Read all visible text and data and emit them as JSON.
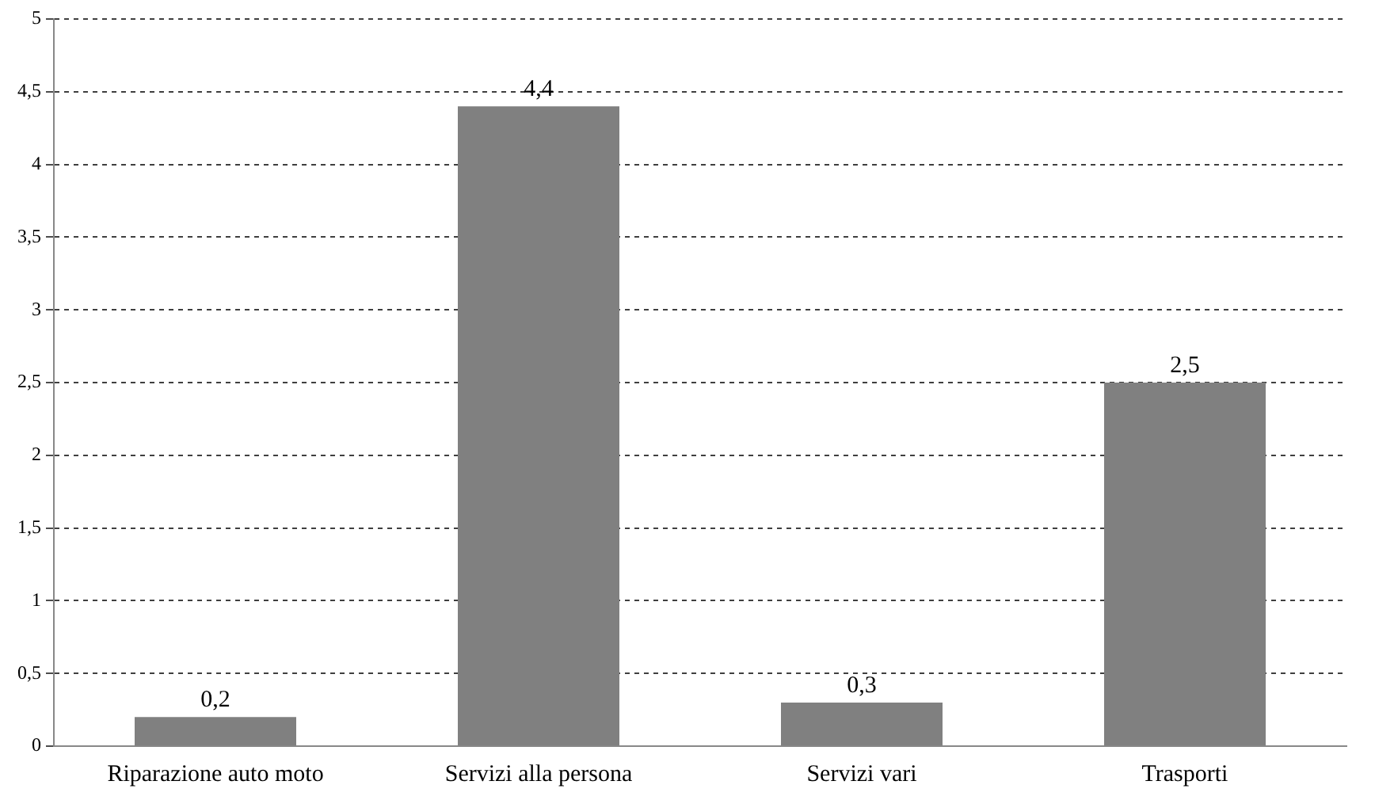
{
  "chart_data": {
    "type": "bar",
    "categories": [
      "Riparazione auto moto",
      "Servizi alla persona",
      "Servizi vari",
      "Trasporti"
    ],
    "values": [
      0.2,
      4.4,
      0.3,
      2.5
    ],
    "value_labels": [
      "0,2",
      "4,4",
      "0,3",
      "2,5"
    ],
    "color": "#808080",
    "ylim": [
      0,
      5
    ],
    "yticks": [
      {
        "value": 0,
        "label": "0"
      },
      {
        "value": 0.5,
        "label": "0,5"
      },
      {
        "value": 1,
        "label": "1"
      },
      {
        "value": 1.5,
        "label": "1,5"
      },
      {
        "value": 2,
        "label": "2"
      },
      {
        "value": 2.5,
        "label": "2,5"
      },
      {
        "value": 3,
        "label": "3"
      },
      {
        "value": 3.5,
        "label": "3,5"
      },
      {
        "value": 4,
        "label": "4"
      },
      {
        "value": 4.5,
        "label": "4,5"
      },
      {
        "value": 5,
        "label": "5"
      }
    ],
    "grid": "y"
  }
}
